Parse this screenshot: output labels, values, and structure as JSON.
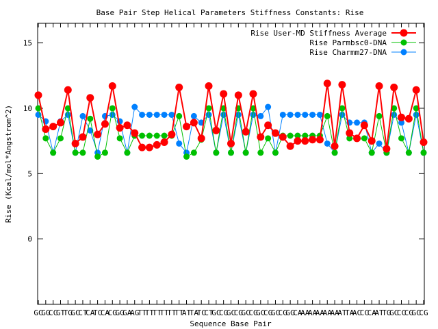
{
  "chart_data": {
    "type": "line",
    "title": "Base Pair Step Helical Parameters Stiffness Constants: Rise",
    "xlabel": "Sequence Base Pair",
    "ylabel": "Rise (Kcal/mol*Angstrom^2)",
    "ylim": [
      -5,
      16.5
    ],
    "yticks": [
      0,
      5,
      10,
      15
    ],
    "x_tick_labels": [
      "GC",
      "GG",
      "CC",
      "GT",
      "TG",
      "GC",
      "CT",
      "CA",
      "TC",
      "CA",
      "CG",
      "GG",
      "GA",
      "AG",
      "TT",
      "TT",
      "TT",
      "TT",
      "TT",
      "TT",
      "AT",
      "TA",
      "TC",
      "CT",
      "GC",
      "CG",
      "GC",
      "CG",
      "GC",
      "CG",
      "GC",
      "CG",
      "GC",
      "CG",
      "GG",
      "CA",
      "AA",
      "AA",
      "AA",
      "AA",
      "AA",
      "AT",
      "TA",
      "AC",
      "CC",
      "CA",
      "AT",
      "TG",
      "GC",
      "CC",
      "CG",
      "GC",
      "CG"
    ],
    "grid": false,
    "legend_position": "top-right",
    "series": [
      {
        "name": "Rise User-MD Stiffness Average",
        "color": "#ff0000",
        "values": [
          11.0,
          8.4,
          8.6,
          8.9,
          11.4,
          7.3,
          7.8,
          10.8,
          8.0,
          8.8,
          11.7,
          8.5,
          8.7,
          8.1,
          7.0,
          7.0,
          7.2,
          7.4,
          8.0,
          11.6,
          8.6,
          8.9,
          7.7,
          11.7,
          8.3,
          11.1,
          7.3,
          11.0,
          8.2,
          11.1,
          7.8,
          8.7,
          8.1,
          7.8,
          7.1,
          7.5,
          7.5,
          7.6,
          7.6,
          11.9,
          7.1,
          11.8,
          8.1,
          7.7,
          8.7,
          7.5,
          11.7,
          6.9,
          11.6,
          9.3,
          9.2,
          11.4,
          7.4
        ]
      },
      {
        "name": "Rise Parmbsc0-DNA",
        "color": "#00c000",
        "values": [
          10.0,
          7.7,
          6.6,
          7.7,
          10.0,
          6.6,
          6.6,
          9.2,
          6.3,
          6.6,
          10.0,
          7.7,
          6.6,
          7.9,
          7.9,
          7.9,
          7.9,
          7.9,
          7.9,
          9.4,
          6.3,
          6.6,
          7.6,
          10.0,
          6.6,
          10.0,
          6.6,
          10.0,
          6.6,
          10.0,
          6.6,
          7.7,
          6.6,
          7.9,
          7.9,
          7.9,
          7.9,
          7.9,
          7.9,
          9.4,
          6.6,
          10.0,
          7.7,
          7.7,
          7.7,
          6.6,
          9.4,
          6.6,
          10.0,
          7.7,
          6.6,
          10.0,
          6.6
        ]
      },
      {
        "name": "Rise Charmm27-DNA",
        "color": "#0080ff",
        "values": [
          9.5,
          9.0,
          6.6,
          9.0,
          9.5,
          6.6,
          9.4,
          8.3,
          6.6,
          9.4,
          9.5,
          9.0,
          6.6,
          10.1,
          9.5,
          9.5,
          9.5,
          9.5,
          9.5,
          7.3,
          6.6,
          9.4,
          8.9,
          9.5,
          6.6,
          9.5,
          6.6,
          9.5,
          6.6,
          9.5,
          9.4,
          10.1,
          6.6,
          9.5,
          9.5,
          9.5,
          9.5,
          9.5,
          9.5,
          7.3,
          6.6,
          9.5,
          8.9,
          8.9,
          8.9,
          6.6,
          7.3,
          6.6,
          9.5,
          8.9,
          6.6,
          9.5,
          6.6
        ]
      }
    ]
  }
}
